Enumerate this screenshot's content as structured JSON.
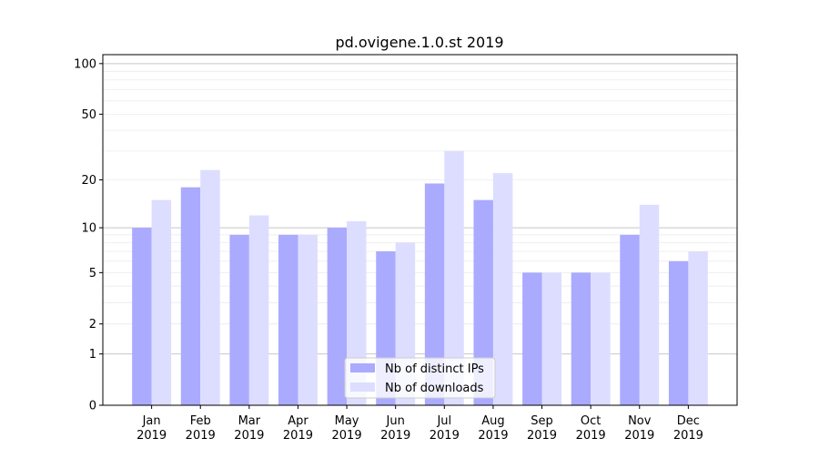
{
  "chart_data": {
    "type": "bar",
    "title": "pd.ovigene.1.0.st 2019",
    "xlabel": "",
    "ylabel": "",
    "yscale": "log(1+y)",
    "ylim": [
      0,
      113
    ],
    "yticks": [
      0,
      1,
      2,
      5,
      10,
      20,
      50,
      100
    ],
    "grid": true,
    "legend_position": "lower center",
    "categories": [
      "Jan\n2019",
      "Feb\n2019",
      "Mar\n2019",
      "Apr\n2019",
      "May\n2019",
      "Jun\n2019",
      "Jul\n2019",
      "Aug\n2019",
      "Sep\n2019",
      "Oct\n2019",
      "Nov\n2019",
      "Dec\n2019"
    ],
    "series": [
      {
        "name": "Nb of distinct IPs",
        "color": "#aaaaff",
        "values": [
          10,
          18,
          9,
          9,
          10,
          7,
          19,
          15,
          5,
          5,
          9,
          6
        ]
      },
      {
        "name": "Nb of downloads",
        "color": "#ddddff",
        "values": [
          15,
          23,
          12,
          9,
          11,
          8,
          30,
          22,
          5,
          5,
          14,
          7
        ]
      }
    ]
  }
}
